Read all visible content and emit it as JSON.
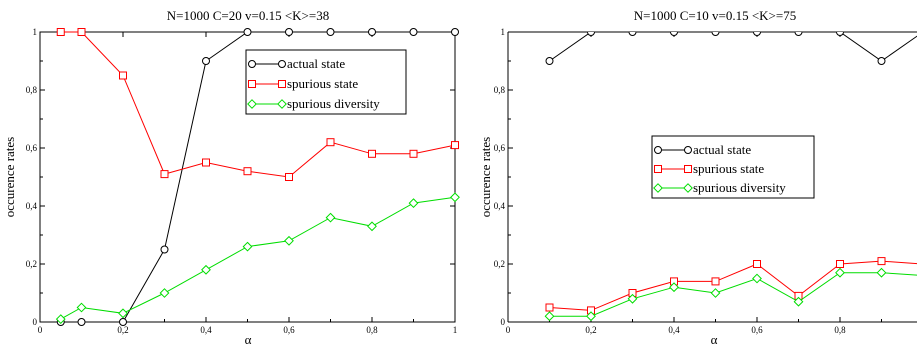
{
  "chart_data": [
    {
      "type": "line",
      "title": "N=1000 C=20  v=0.15  <K>=38",
      "xlabel": "α",
      "ylabel": "occurence rates",
      "xlim": [
        0,
        1
      ],
      "ylim": [
        0,
        1
      ],
      "xticks": [
        0,
        0.2,
        0.4,
        0.6,
        0.8,
        1
      ],
      "xtick_labels": [
        "0",
        "0,2",
        "0,4",
        "0,6",
        "0,8",
        "1"
      ],
      "yticks": [
        0,
        0.2,
        0.4,
        0.6,
        0.8,
        1
      ],
      "ytick_labels": [
        "0",
        "0,2",
        "0,4",
        "0,6",
        "0,8",
        "1"
      ],
      "legend_position": "top-right",
      "grid": false,
      "series": [
        {
          "name": "actual state",
          "color": "#000000",
          "marker": "circle",
          "x": [
            0.05,
            0.1,
            0.2,
            0.3,
            0.4,
            0.5,
            0.6,
            0.7,
            0.8,
            0.9,
            1.0
          ],
          "y": [
            0.0,
            0.0,
            0.0,
            0.25,
            0.9,
            1.0,
            1.0,
            1.0,
            1.0,
            1.0,
            1.0
          ]
        },
        {
          "name": "spurious state",
          "color": "#ff0000",
          "marker": "square",
          "x": [
            0.05,
            0.1,
            0.2,
            0.3,
            0.4,
            0.5,
            0.6,
            0.7,
            0.8,
            0.9,
            1.0
          ],
          "y": [
            1.0,
            1.0,
            0.85,
            0.51,
            0.55,
            0.52,
            0.5,
            0.62,
            0.58,
            0.58,
            0.61
          ]
        },
        {
          "name": "spurious diversity",
          "color": "#00dd00",
          "marker": "diamond",
          "x": [
            0.05,
            0.1,
            0.2,
            0.3,
            0.4,
            0.5,
            0.6,
            0.7,
            0.8,
            0.9,
            1.0
          ],
          "y": [
            0.01,
            0.05,
            0.03,
            0.1,
            0.18,
            0.26,
            0.28,
            0.36,
            0.33,
            0.41,
            0.43
          ]
        }
      ]
    },
    {
      "type": "line",
      "title": "N=1000 C=10  v=0.15  <K>=75",
      "xlabel": "α",
      "ylabel": "occurence rates",
      "xlim": [
        0,
        1
      ],
      "ylim": [
        0,
        1
      ],
      "xticks": [
        0,
        0.2,
        0.4,
        0.6,
        0.8
      ],
      "xtick_labels": [
        "0",
        "0,2",
        "0,4",
        "0,6",
        "0,8"
      ],
      "yticks": [
        0,
        0.2,
        0.4,
        0.6,
        0.8,
        1
      ],
      "ytick_labels": [
        "0",
        "0,2",
        "0,4",
        "0,6",
        "0,8",
        "1"
      ],
      "legend_position": "center-right",
      "grid": false,
      "series": [
        {
          "name": "actual state",
          "color": "#000000",
          "marker": "circle",
          "x": [
            0.1,
            0.2,
            0.3,
            0.4,
            0.5,
            0.6,
            0.7,
            0.8,
            0.9,
            1.0
          ],
          "y": [
            0.9,
            1.0,
            1.0,
            1.0,
            1.0,
            1.0,
            1.0,
            1.0,
            0.9,
            1.0
          ]
        },
        {
          "name": "spurious state",
          "color": "#ff0000",
          "marker": "square",
          "x": [
            0.1,
            0.2,
            0.3,
            0.4,
            0.5,
            0.6,
            0.7,
            0.8,
            0.9,
            1.0
          ],
          "y": [
            0.05,
            0.04,
            0.1,
            0.14,
            0.14,
            0.2,
            0.09,
            0.2,
            0.21,
            0.2
          ]
        },
        {
          "name": "spurious diversity",
          "color": "#00dd00",
          "marker": "diamond",
          "x": [
            0.1,
            0.2,
            0.3,
            0.4,
            0.5,
            0.6,
            0.7,
            0.8,
            0.9,
            1.0
          ],
          "y": [
            0.02,
            0.02,
            0.08,
            0.12,
            0.1,
            0.15,
            0.07,
            0.17,
            0.17,
            0.16
          ]
        }
      ]
    }
  ]
}
